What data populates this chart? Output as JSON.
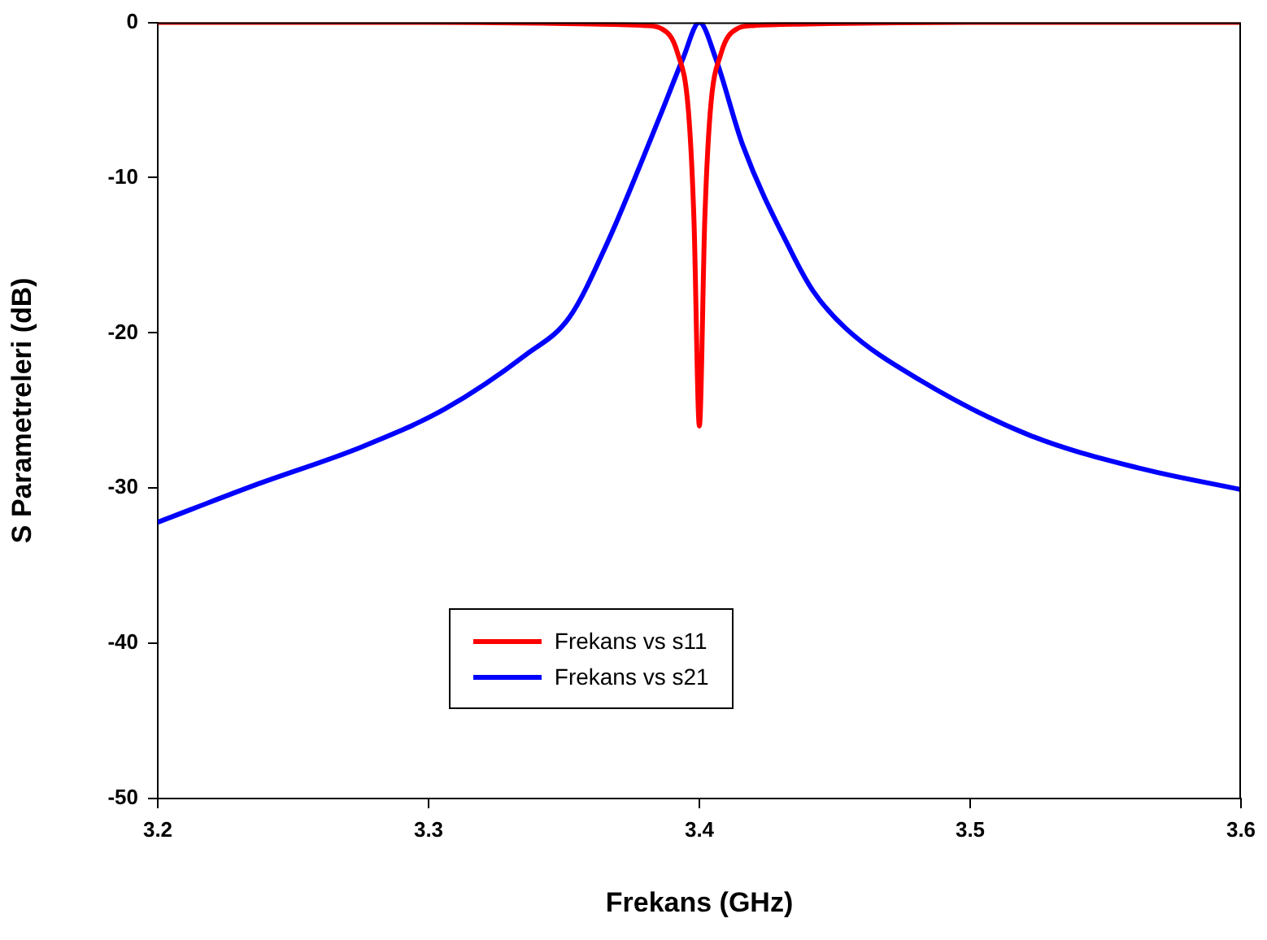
{
  "chart_data": {
    "type": "line",
    "xlabel": "Frekans (GHz)",
    "ylabel": "S Parametreleri (dB)",
    "xlim": [
      3.2,
      3.6
    ],
    "xticks": [
      3.2,
      3.3,
      3.4,
      3.5,
      3.6
    ],
    "ylim": [
      -50,
      0
    ],
    "yticks": [
      -50,
      -40,
      -30,
      -20,
      -10,
      0
    ],
    "grid": false,
    "legend": "bottom",
    "marker": "none",
    "line_style": "solid",
    "series": [
      {
        "name": "Frekans vs  s11",
        "color": "#ff0000",
        "x": [
          3.2,
          3.3,
          3.36,
          3.38,
          3.386,
          3.392,
          3.396,
          3.398,
          3.4,
          3.402,
          3.404,
          3.408,
          3.414,
          3.42,
          3.44,
          3.5,
          3.6
        ],
        "values": [
          0,
          0,
          -0.1,
          -0.2,
          -0.4,
          -2,
          -5.8,
          -12.7,
          -26,
          -12.7,
          -5.8,
          -2,
          -0.4,
          -0.2,
          -0.1,
          0,
          0
        ]
      },
      {
        "name": "Frekans vs  s21",
        "color": "#0000ff",
        "x": [
          3.2,
          3.236,
          3.276,
          3.306,
          3.336,
          3.352,
          3.366,
          3.386,
          3.394,
          3.4,
          3.406,
          3.416,
          3.434,
          3.442,
          3.454,
          3.482,
          3.522,
          3.562,
          3.6
        ],
        "values": [
          -32.2,
          -29.8,
          -27.3,
          -24.9,
          -21.4,
          -19,
          -14.2,
          -5.8,
          -2.3,
          0,
          -2.3,
          -7.9,
          -14.8,
          -17.3,
          -19.7,
          -23.1,
          -26.6,
          -28.7,
          -30.1
        ]
      }
    ]
  }
}
